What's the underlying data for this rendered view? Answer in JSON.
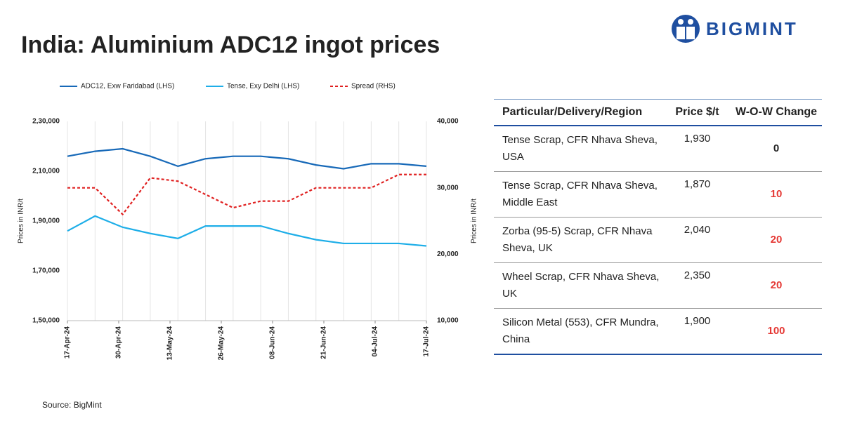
{
  "logo": "BIGMINT",
  "chart_data": {
    "type": "line",
    "title": "India: Aluminium ADC12 ingot prices",
    "ylabel": "Prices in INR/t",
    "y2label": "Prices in INR/t",
    "source": "Source: BigMint",
    "legend": "top",
    "grid": "x",
    "x": [
      "2024-04-17",
      "2024-04-24",
      "2024-05-01",
      "2024-05-08",
      "2024-05-15",
      "2024-05-22",
      "2024-05-29",
      "2024-06-05",
      "2024-06-12",
      "2024-06-19",
      "2024-06-26",
      "2024-07-03",
      "2024-07-10",
      "2024-07-17"
    ],
    "xlim": [
      "2024-04-17",
      "2024-07-17"
    ],
    "xticks": [
      {
        "value": "2024-04-17",
        "label": "17-Apr-24"
      },
      {
        "value": "2024-04-30",
        "label": "30-Apr-24"
      },
      {
        "value": "2024-05-13",
        "label": "13-May-24"
      },
      {
        "value": "2024-05-26",
        "label": "26-May-24"
      },
      {
        "value": "2024-06-08",
        "label": "08-Jun-24"
      },
      {
        "value": "2024-06-21",
        "label": "21-Jun-24"
      },
      {
        "value": "2024-07-04",
        "label": "04-Jul-24"
      },
      {
        "value": "2024-07-17",
        "label": "17-Jul-24"
      }
    ],
    "ylim": [
      150000,
      230000
    ],
    "yticks": [
      {
        "value": 150000,
        "label": "1,50,000"
      },
      {
        "value": 170000,
        "label": "1,70,000"
      },
      {
        "value": 190000,
        "label": "1,90,000"
      },
      {
        "value": 210000,
        "label": "2,10,000"
      },
      {
        "value": 230000,
        "label": "2,30,000"
      }
    ],
    "y2lim": [
      10000,
      40000
    ],
    "y2ticks": [
      {
        "value": 10000,
        "label": "10,000"
      },
      {
        "value": 20000,
        "label": "20,000"
      },
      {
        "value": 30000,
        "label": "30,000"
      },
      {
        "value": 40000,
        "label": "40,000"
      }
    ],
    "series": [
      {
        "name": "ADC12, Exw Faridabad (LHS)",
        "color": "#1769b8",
        "line_style": "solid",
        "values": [
          216000,
          218000,
          219000,
          216000,
          212000,
          215000,
          216000,
          216000,
          215000,
          212500,
          211000,
          213000,
          213000,
          212000
        ]
      },
      {
        "name": "Tense, Exy Delhi (LHS)",
        "color": "#1eaee8",
        "line_style": "solid",
        "values": [
          186000,
          192000,
          187500,
          185000,
          183000,
          188000,
          188000,
          188000,
          185000,
          182500,
          181000,
          181000,
          181000,
          180000
        ]
      },
      {
        "name": "Spread (RHS)",
        "color": "#e02020",
        "line_style": "dashed",
        "axis": "y2",
        "values": [
          30000,
          30000,
          26000,
          31500,
          31000,
          29000,
          27000,
          28000,
          28000,
          30000,
          30000,
          30000,
          32000,
          32000
        ]
      }
    ]
  },
  "table": {
    "header": [
      "Particular/Delivery/Region",
      "Price $/t",
      "W-O-W Change"
    ],
    "rows": [
      [
        "Tense Scrap, CFR Nhava Sheva, USA",
        "1,930",
        "0"
      ],
      [
        "Tense Scrap, CFR Nhava Sheva, Middle East",
        "1,870",
        "10"
      ],
      [
        "Zorba (95-5) Scrap, CFR Nhava Sheva, UK",
        "2,040",
        "20"
      ],
      [
        "Wheel Scrap, CFR Nhava Sheva, UK",
        "2,350",
        "20"
      ],
      [
        "Silicon Metal (553), CFR Mundra, China",
        "1,900",
        "100"
      ]
    ]
  }
}
